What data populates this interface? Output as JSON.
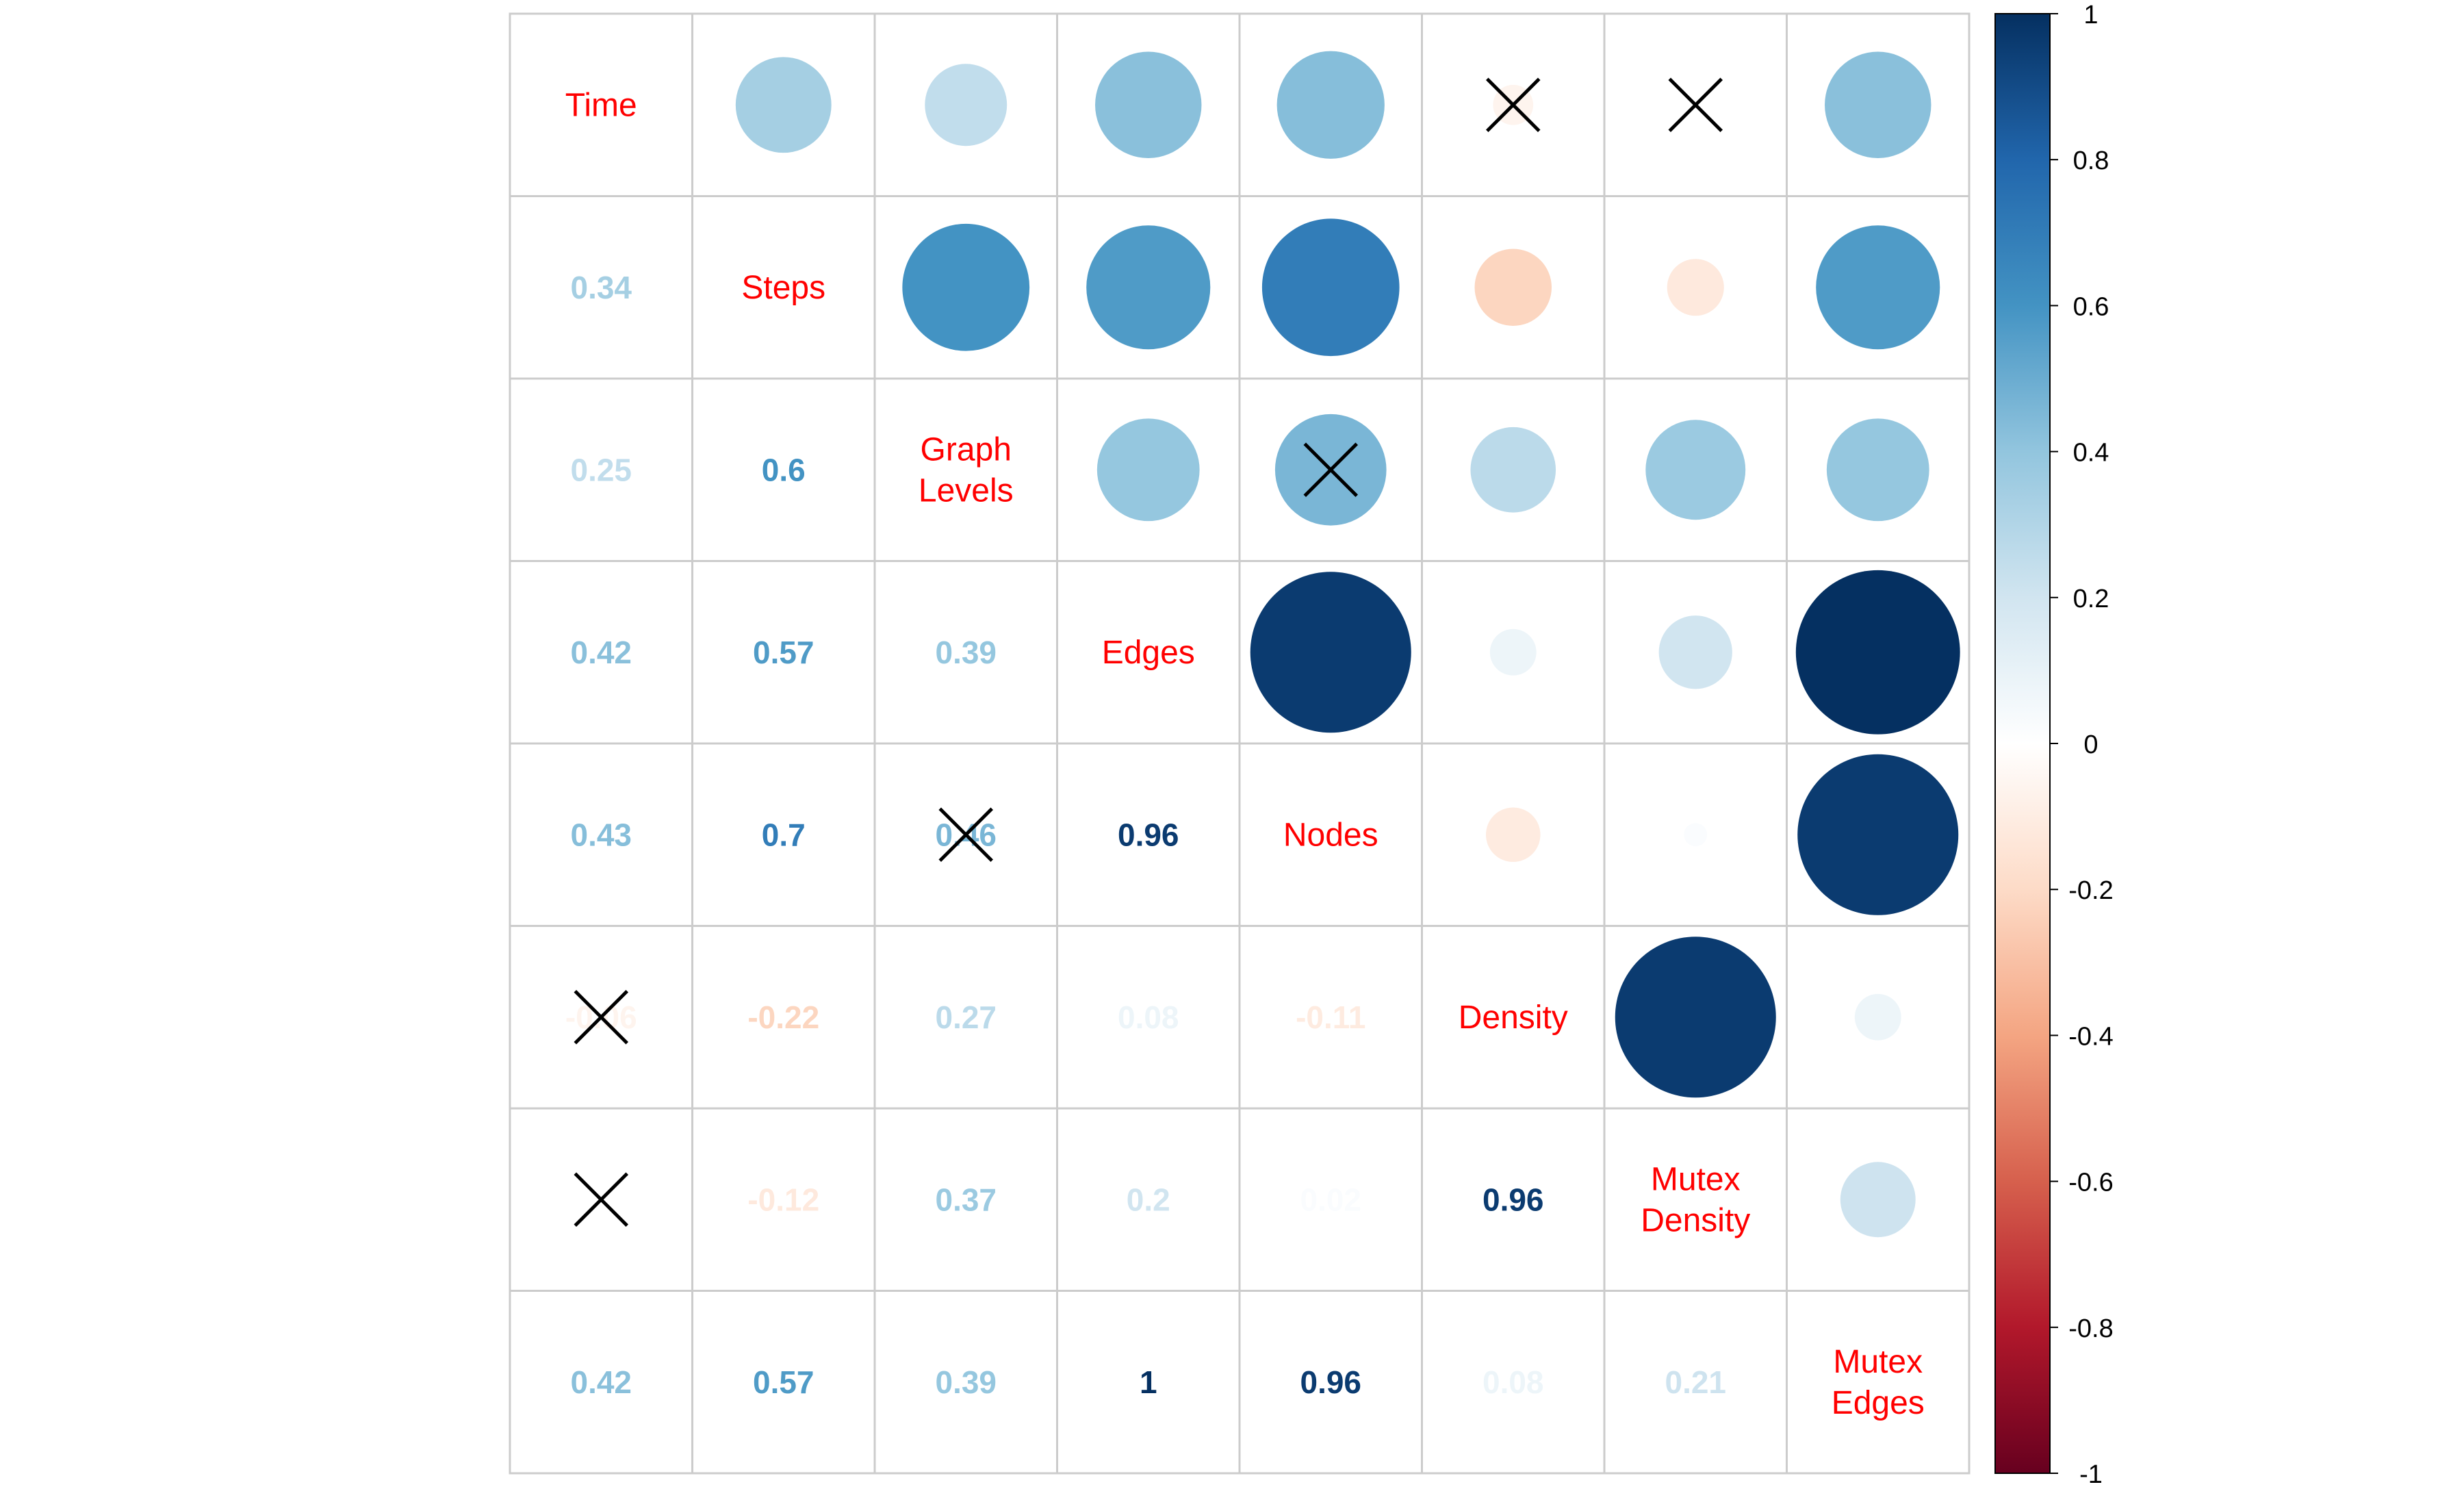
{
  "chart_data": {
    "type": "heatmap",
    "variables": [
      "Time",
      "Steps",
      "Graph Levels",
      "Edges",
      "Nodes",
      "Density",
      "Mutex Density",
      "Mutex Edges"
    ],
    "diagonal_labels": [
      [
        "Time"
      ],
      [
        "Steps"
      ],
      [
        "Graph",
        "Levels"
      ],
      [
        "Edges"
      ],
      [
        "Nodes"
      ],
      [
        "Density"
      ],
      [
        "Mutex",
        "Density"
      ],
      [
        "Mutex",
        "Edges"
      ]
    ],
    "matrix": [
      [
        1,
        0.34,
        0.25,
        0.42,
        0.43,
        -0.06,
        0.0,
        0.42
      ],
      [
        0.34,
        1,
        0.6,
        0.57,
        0.7,
        -0.22,
        -0.12,
        0.57
      ],
      [
        0.25,
        0.6,
        1,
        0.39,
        0.46,
        0.27,
        0.37,
        0.39
      ],
      [
        0.42,
        0.57,
        0.39,
        1,
        0.96,
        0.08,
        0.2,
        1
      ],
      [
        0.43,
        0.7,
        0.46,
        0.96,
        1,
        -0.11,
        0.02,
        0.96
      ],
      [
        -0.06,
        -0.22,
        0.27,
        0.08,
        -0.11,
        1,
        0.96,
        0.08
      ],
      [
        0.0,
        -0.12,
        0.37,
        0.2,
        0.02,
        0.96,
        1,
        0.21
      ],
      [
        0.42,
        0.57,
        0.39,
        1,
        0.96,
        0.08,
        0.21,
        1
      ]
    ],
    "lower_triangle_labels": [
      [
        null,
        null,
        null,
        null,
        null,
        null,
        null,
        null
      ],
      [
        "0.34",
        null,
        null,
        null,
        null,
        null,
        null,
        null
      ],
      [
        "0.25",
        "0.6",
        null,
        null,
        null,
        null,
        null,
        null
      ],
      [
        "0.42",
        "0.57",
        "0.39",
        null,
        null,
        null,
        null,
        null
      ],
      [
        "0.43",
        "0.7",
        "0.46",
        "0.96",
        null,
        null,
        null,
        null
      ],
      [
        "-0.06",
        "-0.22",
        "0.27",
        "0.08",
        "-0.11",
        null,
        null,
        null
      ],
      [
        "",
        "-0.12",
        "0.37",
        "0.2",
        "0.02",
        "0.96",
        null,
        null
      ],
      [
        "0.42",
        "0.57",
        "0.39",
        "1",
        "0.96",
        "0.08",
        "0.21",
        null
      ]
    ],
    "insignificant_cells": [
      [
        0,
        5
      ],
      [
        0,
        6
      ],
      [
        2,
        4
      ],
      [
        4,
        2
      ],
      [
        5,
        0
      ],
      [
        6,
        0
      ]
    ],
    "upper_triangle": "circles sized and colored by correlation",
    "lower_triangle": "colored correlation coefficients",
    "colorbar": {
      "ticks": [
        "1",
        "0.8",
        "0.6",
        "0.4",
        "0.2",
        "0",
        "-0.2",
        "-0.4",
        "-0.6",
        "-0.8",
        "-1"
      ],
      "range": [
        -1,
        1
      ],
      "colors": [
        "#67001F",
        "#B2182B",
        "#D6604D",
        "#F4A582",
        "#FDDBC7",
        "#FFFFFF",
        "#D1E5F0",
        "#92C5DE",
        "#4393C3",
        "#2166AC",
        "#053061"
      ]
    },
    "grid_color": "#cccccc",
    "diagonal_label_color": "#ff0000",
    "cross_color": "#000000"
  }
}
